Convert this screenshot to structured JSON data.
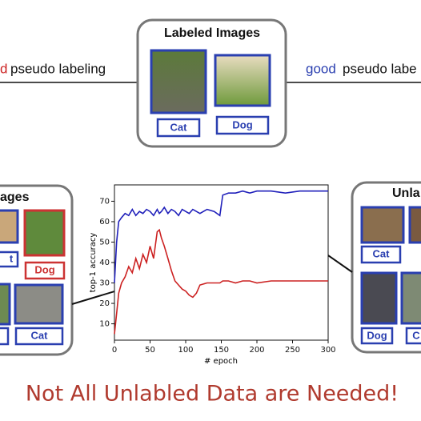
{
  "top_box": {
    "title": "Labeled Images",
    "labels": [
      "Cat",
      "Dog"
    ]
  },
  "left_link": {
    "marker": "d",
    "text": "pseudo labeling"
  },
  "right_link": {
    "marker": "good",
    "text": "pseudo labe"
  },
  "left_box": {
    "title": "ages",
    "labels": [
      "t",
      "Dog",
      "Cat"
    ]
  },
  "right_box": {
    "title": "Unla",
    "labels": [
      "Cat",
      "Dog",
      "C"
    ]
  },
  "caption": "Not All Unlabled Data are Needed!",
  "chart_data": {
    "type": "line",
    "x_label": "# epoch",
    "y_label": "top-1 accuracy",
    "x": [
      0,
      3,
      6,
      10,
      15,
      20,
      25,
      30,
      35,
      40,
      45,
      50,
      55,
      60,
      63,
      66,
      70,
      75,
      80,
      85,
      90,
      95,
      100,
      105,
      110,
      115,
      120,
      130,
      140,
      148,
      152,
      160,
      170,
      180,
      190,
      200,
      220,
      240,
      260,
      280,
      300
    ],
    "series": [
      {
        "color": "#2222bb",
        "values": [
          30,
          50,
          60,
          62,
          64,
          63,
          66,
          63,
          65,
          64,
          66,
          65,
          63,
          66,
          64,
          65,
          67,
          64,
          66,
          65,
          63,
          66,
          65,
          64,
          66,
          65,
          64,
          66,
          65,
          63,
          73,
          74,
          74,
          75,
          74,
          75,
          75,
          74,
          75,
          75,
          75
        ]
      },
      {
        "color": "#cc2222",
        "values": [
          5,
          15,
          25,
          30,
          33,
          38,
          35,
          42,
          37,
          44,
          40,
          48,
          42,
          55,
          56,
          52,
          48,
          42,
          36,
          31,
          29,
          27,
          26,
          24,
          23,
          25,
          29,
          30,
          30,
          30,
          31,
          31,
          30,
          31,
          31,
          30,
          31,
          31,
          31,
          31,
          31
        ]
      }
    ],
    "xlim": [
      0,
      300
    ],
    "ylim": [
      2,
      78
    ],
    "xticks": [
      0,
      50,
      100,
      150,
      200,
      250,
      300
    ],
    "yticks": [
      10,
      20,
      30,
      40,
      50,
      60,
      70
    ]
  }
}
